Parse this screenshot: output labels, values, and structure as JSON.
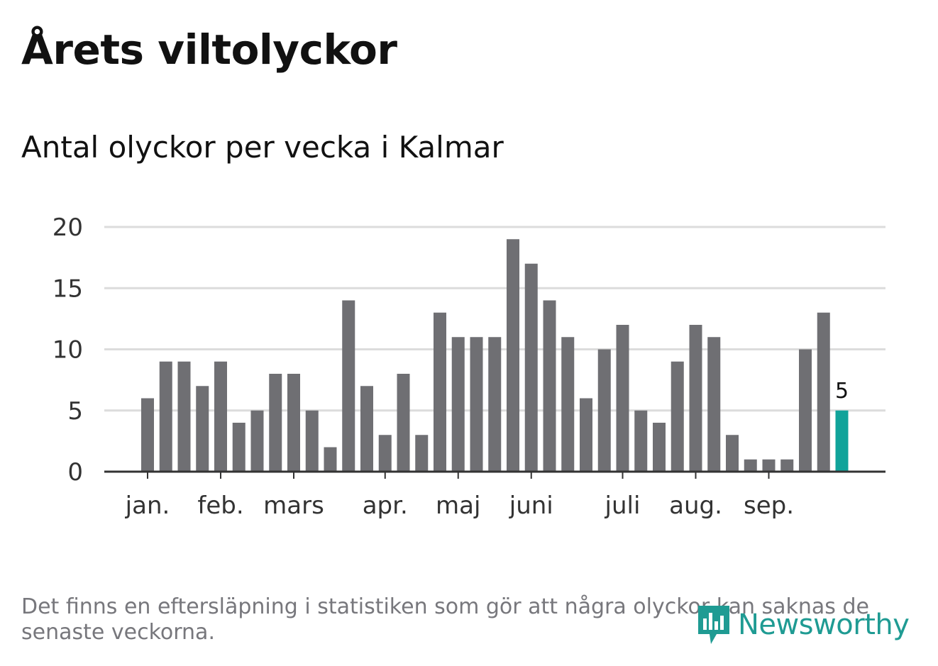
{
  "header": {
    "title": "Årets viltolyckor",
    "subtitle": "Antal olyckor per vecka i Kalmar"
  },
  "chart_data": {
    "type": "bar",
    "title": "Årets viltolyckor",
    "subtitle": "Antal olyckor per vecka i Kalmar",
    "xlabel": "",
    "ylabel": "",
    "ylim": [
      0,
      20
    ],
    "yticks": [
      "0",
      "5",
      "10",
      "15",
      "20"
    ],
    "grid": true,
    "legend": "none",
    "month_labels": [
      "jan.",
      "feb.",
      "mars",
      "apr.",
      "maj",
      "juni",
      "juli",
      "aug.",
      "sep."
    ],
    "month_label_weeks": [
      1,
      5,
      9,
      14,
      18,
      22,
      27,
      31,
      35
    ],
    "weeks": [
      1,
      2,
      3,
      4,
      5,
      6,
      7,
      8,
      9,
      10,
      11,
      12,
      13,
      14,
      15,
      16,
      17,
      18,
      19,
      20,
      21,
      22,
      23,
      24,
      25,
      26,
      27,
      28,
      29,
      30,
      31,
      32,
      33,
      34,
      35,
      36,
      37,
      38,
      39
    ],
    "values": [
      6,
      9,
      9,
      7,
      9,
      4,
      5,
      8,
      8,
      5,
      2,
      14,
      7,
      3,
      8,
      3,
      13,
      11,
      11,
      11,
      19,
      17,
      14,
      11,
      6,
      10,
      12,
      5,
      4,
      9,
      12,
      11,
      3,
      1,
      1,
      1,
      10,
      13,
      5
    ],
    "highlight_index": 38,
    "highlight_label": "5",
    "colors": {
      "bar": "#6f6f73",
      "highlight": "#10a39a",
      "grid": "#dcdcdc",
      "axis": "#333333",
      "tick_text": "#333333"
    }
  },
  "footer": {
    "note": "Det finns en eftersläpning i statistiken som gör att några olyckor kan saknas de senaste veckorna.",
    "logo_text": "Newsworthy"
  }
}
